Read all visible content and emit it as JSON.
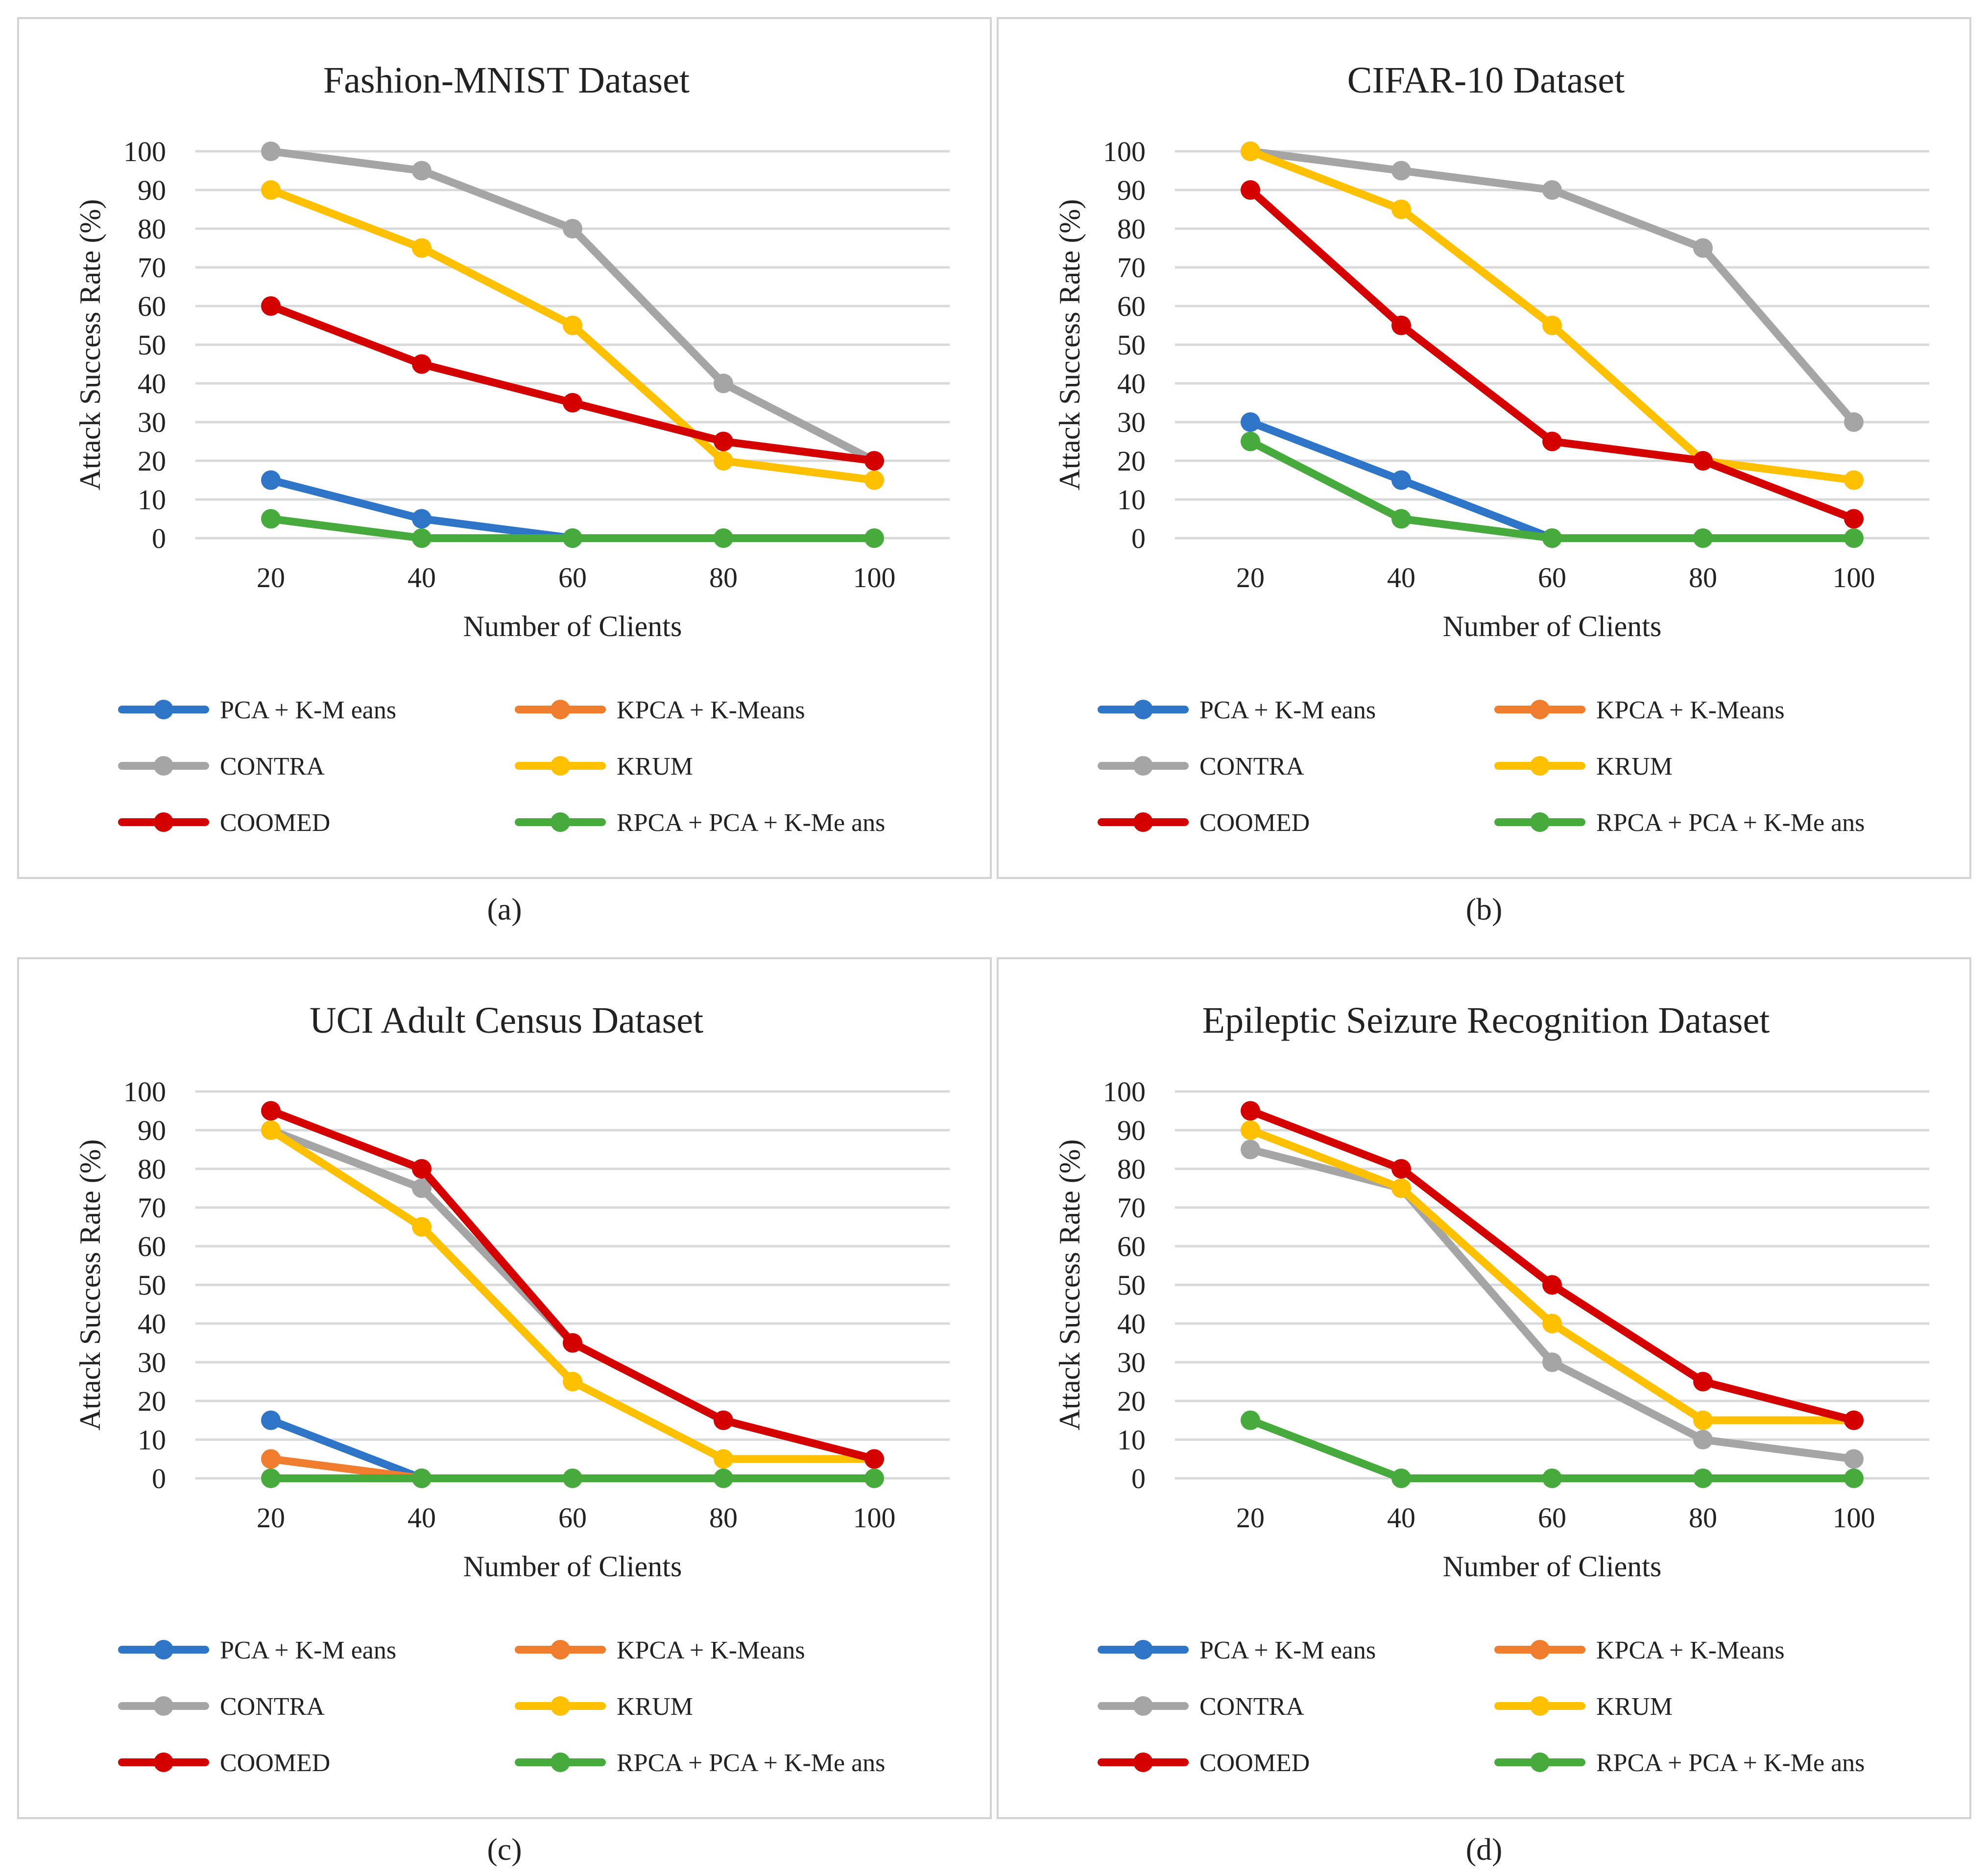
{
  "colors": {
    "PCA + K-Means": "#2e75c8",
    "KPCA + K-Means": "#f07d2e",
    "CONTRA": "#a5a5a5",
    "KRUM": "#ffc000",
    "COOMED": "#d40000",
    "RPCA + PCA + K-Means": "#47aa3c"
  },
  "captions": [
    "(a)",
    "(b)",
    "(c)",
    "(d)"
  ],
  "chart_data": [
    {
      "type": "line",
      "title": "Fashion-MNIST Dataset",
      "xlabel": "Number of Clients",
      "ylabel": "Attack Success Rate (%)",
      "categories": [
        "20",
        "40",
        "60",
        "80",
        "100"
      ],
      "yticks": [
        "0",
        "10",
        "20",
        "30",
        "40",
        "50",
        "60",
        "70",
        "80",
        "90",
        "100"
      ],
      "ylim": [
        0,
        100
      ],
      "legend_position": "bottom",
      "legend_labels": [
        "PCA + K-M eans",
        "KPCA + K-Means",
        "CONTRA",
        "KRUM",
        "COOMED",
        "RPCA + PCA + K-Me ans"
      ],
      "series": [
        {
          "name": "PCA + K-Means",
          "values": [
            15,
            5,
            0,
            null,
            null
          ]
        },
        {
          "name": "KPCA + K-Means",
          "values": [
            null,
            null,
            null,
            null,
            null
          ]
        },
        {
          "name": "CONTRA",
          "values": [
            100,
            95,
            80,
            40,
            20
          ]
        },
        {
          "name": "KRUM",
          "values": [
            90,
            75,
            55,
            20,
            15
          ]
        },
        {
          "name": "COOMED",
          "values": [
            60,
            45,
            35,
            25,
            20
          ]
        },
        {
          "name": "RPCA + PCA + K-Means",
          "values": [
            5,
            0,
            0,
            0,
            0
          ]
        }
      ]
    },
    {
      "type": "line",
      "title": "CIFAR-10 Dataset",
      "xlabel": "Number of Clients",
      "ylabel": "Attack Success Rate (%)",
      "categories": [
        "20",
        "40",
        "60",
        "80",
        "100"
      ],
      "yticks": [
        "0",
        "10",
        "20",
        "30",
        "40",
        "50",
        "60",
        "70",
        "80",
        "90",
        "100"
      ],
      "ylim": [
        0,
        100
      ],
      "legend_position": "bottom",
      "legend_labels": [
        "PCA + K-M eans",
        "KPCA + K-Means",
        "CONTRA",
        "KRUM",
        "COOMED",
        "RPCA + PCA + K-Me ans"
      ],
      "series": [
        {
          "name": "PCA + K-Means",
          "values": [
            30,
            15,
            0,
            null,
            null
          ]
        },
        {
          "name": "KPCA + K-Means",
          "values": [
            null,
            null,
            null,
            null,
            null
          ]
        },
        {
          "name": "CONTRA",
          "values": [
            100,
            95,
            90,
            75,
            30
          ]
        },
        {
          "name": "KRUM",
          "values": [
            100,
            85,
            55,
            20,
            15
          ]
        },
        {
          "name": "COOMED",
          "values": [
            90,
            55,
            25,
            20,
            5
          ]
        },
        {
          "name": "RPCA + PCA + K-Means",
          "values": [
            25,
            5,
            0,
            0,
            0
          ]
        }
      ]
    },
    {
      "type": "line",
      "title": "UCI Adult Census Dataset",
      "xlabel": "Number of Clients",
      "ylabel": "Attack Success Rate (%)",
      "categories": [
        "20",
        "40",
        "60",
        "80",
        "100"
      ],
      "yticks": [
        "0",
        "10",
        "20",
        "30",
        "40",
        "50",
        "60",
        "70",
        "80",
        "90",
        "100"
      ],
      "ylim": [
        0,
        100
      ],
      "legend_position": "bottom",
      "legend_labels": [
        "PCA + K-M eans",
        "KPCA + K-Means",
        "CONTRA",
        "KRUM",
        "COOMED",
        "RPCA + PCA + K-Me ans"
      ],
      "series": [
        {
          "name": "PCA + K-Means",
          "values": [
            15,
            0,
            null,
            null,
            null
          ]
        },
        {
          "name": "KPCA + K-Means",
          "values": [
            5,
            0,
            null,
            null,
            null
          ]
        },
        {
          "name": "CONTRA",
          "values": [
            90,
            75,
            35,
            15,
            5
          ]
        },
        {
          "name": "KRUM",
          "values": [
            90,
            65,
            25,
            5,
            5
          ]
        },
        {
          "name": "COOMED",
          "values": [
            95,
            80,
            35,
            15,
            5
          ]
        },
        {
          "name": "RPCA + PCA + K-Means",
          "values": [
            0,
            0,
            0,
            0,
            0
          ]
        }
      ]
    },
    {
      "type": "line",
      "title": "Epileptic Seizure Recognition Dataset",
      "xlabel": "Number of Clients",
      "ylabel": "Attack Success Rate (%)",
      "categories": [
        "20",
        "40",
        "60",
        "80",
        "100"
      ],
      "yticks": [
        "0",
        "10",
        "20",
        "30",
        "40",
        "50",
        "60",
        "70",
        "80",
        "90",
        "100"
      ],
      "ylim": [
        0,
        100
      ],
      "legend_position": "bottom",
      "legend_labels": [
        "PCA + K-M eans",
        "KPCA + K-Means",
        "CONTRA",
        "KRUM",
        "COOMED",
        "RPCA + PCA + K-Me ans"
      ],
      "series": [
        {
          "name": "PCA + K-Means",
          "values": [
            null,
            null,
            null,
            null,
            null
          ]
        },
        {
          "name": "KPCA + K-Means",
          "values": [
            null,
            null,
            null,
            null,
            null
          ]
        },
        {
          "name": "CONTRA",
          "values": [
            85,
            75,
            30,
            10,
            5
          ]
        },
        {
          "name": "KRUM",
          "values": [
            90,
            75,
            40,
            15,
            15
          ]
        },
        {
          "name": "COOMED",
          "values": [
            95,
            80,
            50,
            25,
            15
          ]
        },
        {
          "name": "RPCA + PCA + K-Means",
          "values": [
            15,
            0,
            0,
            0,
            0
          ]
        }
      ]
    }
  ]
}
